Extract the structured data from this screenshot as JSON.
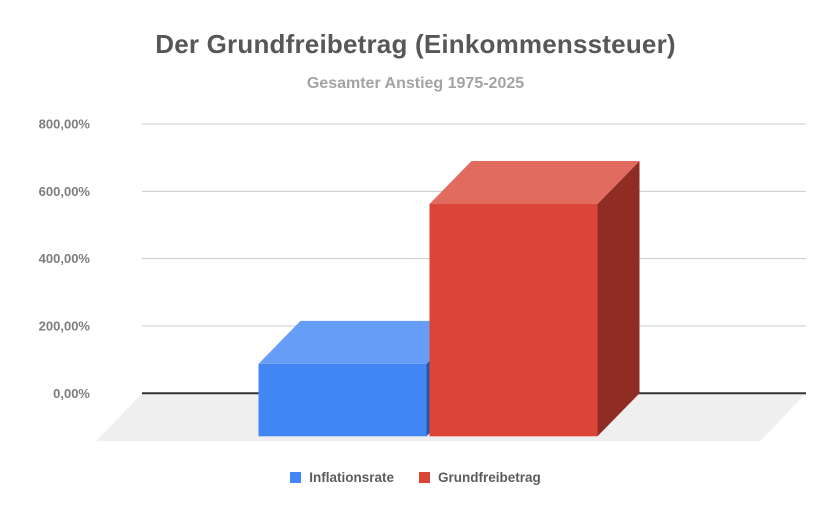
{
  "chart_data": {
    "type": "bar",
    "style": "3d-column",
    "title": "Der Grundfreibetrag (Einkommenssteuer)",
    "subtitle": "Gesamter Anstieg 1975-2025",
    "categories": [
      "Gesamter Anstieg 1975-2025"
    ],
    "series": [
      {
        "name": "Inflationsrate",
        "value": 215,
        "color": "#4285f4",
        "top_color": "#669df6",
        "side_color": "#2b569f"
      },
      {
        "name": "Grundfreibetrag",
        "value": 690,
        "color": "#db4437",
        "top_color": "#e26b60",
        "side_color": "#8f2c24"
      }
    ],
    "xlabel": "",
    "ylabel": "",
    "ylim": [
      0,
      800
    ],
    "grid": true,
    "legend_position": "bottom",
    "yticks": [
      {
        "value": 0,
        "label": "0,00%"
      },
      {
        "value": 200,
        "label": "200,00%"
      },
      {
        "value": 400,
        "label": "400,00%"
      },
      {
        "value": 600,
        "label": "600,00%"
      },
      {
        "value": 800,
        "label": "800,00%"
      }
    ],
    "colors": {
      "title": "#575757",
      "subtitle": "#a3a3a3",
      "legend_text": "#5c5c5c",
      "tick_label": "#7d7d7d",
      "grid": "#cccccc",
      "axis": "#333333",
      "floor": "#efefef",
      "background": "#ffffff"
    }
  }
}
